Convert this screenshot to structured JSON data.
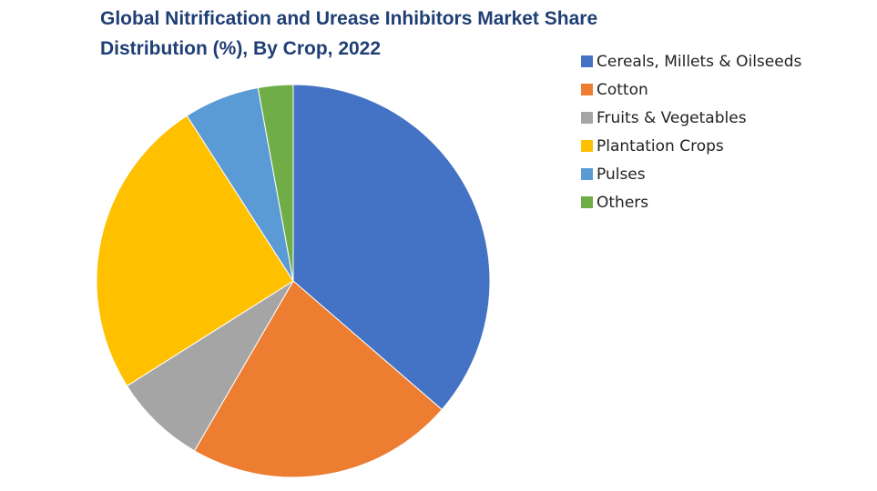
{
  "chart_data": {
    "type": "pie",
    "title_lines": [
      "Global Nitrification and Urease Inhibitors Market Share",
      "Distribution (%), By Crop, 2022"
    ],
    "legend_position": "right",
    "slices": [
      {
        "label": "Cereals, Millets & Oilseeds",
        "value": 38.0,
        "color": "#4472c4"
      },
      {
        "label": "Cotton",
        "value": 23.0,
        "color": "#ed7d31"
      },
      {
        "label": "Fruits & Vegetables",
        "value": 8.0,
        "color": "#a5a5a5"
      },
      {
        "label": "Plantation Crops",
        "value": 26.0,
        "color": "#ffc000"
      },
      {
        "label": "Pulses",
        "value": 6.5,
        "color": "#5b9bd5"
      },
      {
        "label": "Others",
        "value": 3.0,
        "color": "#70ad47"
      }
    ]
  }
}
